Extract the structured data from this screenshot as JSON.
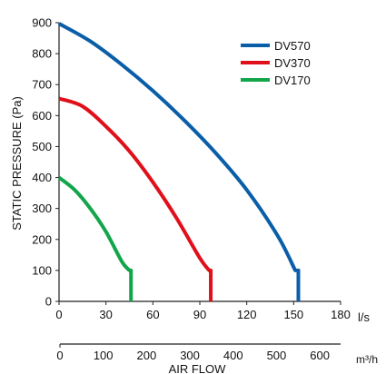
{
  "chart_data": {
    "type": "line",
    "title": "",
    "ylabel": "STATIC PRESSURE (Pa)",
    "xlabel": "AIR FLOW",
    "x_unit": "l/s",
    "x2_unit": "m³/h",
    "xlim": [
      0,
      180
    ],
    "ylim": [
      0,
      900
    ],
    "x_ticks": [
      "0",
      "30",
      "60",
      "90",
      "120",
      "150",
      "180"
    ],
    "y_ticks": [
      "0",
      "100",
      "200",
      "300",
      "400",
      "500",
      "600",
      "700",
      "800",
      "900"
    ],
    "x2_ticks": [
      "0",
      "100",
      "200",
      "300",
      "400",
      "500",
      "600"
    ],
    "x2_lim": [
      0,
      648
    ],
    "grid": false,
    "legend_position": "top-right",
    "series": [
      {
        "name": "DV570",
        "color": "#0a5ea8",
        "x": [
          0,
          20,
          40,
          60,
          80,
          100,
          120,
          140,
          151,
          153,
          153
        ],
        "y": [
          897,
          840,
          765,
          680,
          585,
          480,
          360,
          210,
          100,
          100,
          0
        ]
      },
      {
        "name": "DV370",
        "color": "#e0101b",
        "x": [
          0,
          15,
          30,
          45,
          60,
          75,
          90,
          96,
          97,
          97
        ],
        "y": [
          655,
          630,
          565,
          485,
          385,
          270,
          140,
          100,
          100,
          0
        ]
      },
      {
        "name": "DV170",
        "color": "#13a54a",
        "x": [
          0,
          10,
          20,
          30,
          40,
          45,
          46,
          46
        ],
        "y": [
          400,
          360,
          300,
          225,
          130,
          100,
          100,
          0
        ]
      }
    ]
  }
}
